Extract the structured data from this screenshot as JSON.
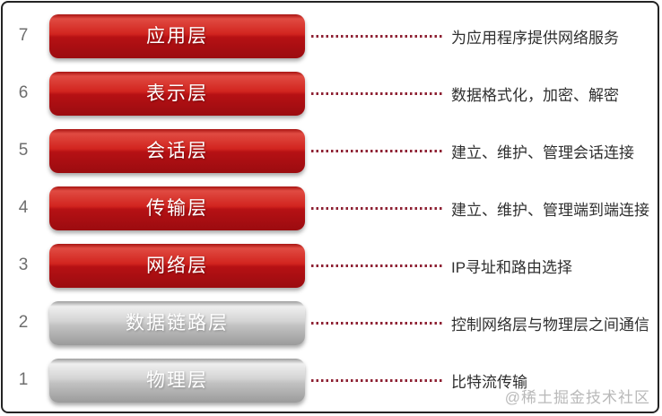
{
  "title": "OSI seven-layer network model diagram",
  "watermark": "@稀土掘金技术社区",
  "colors": {
    "red_bar": "#c8201d",
    "gray_bar": "#c6c6c6",
    "bar_text": "#ffffff",
    "leader_dots": "#8e2133",
    "description_text": "#2f2f2f",
    "layer_number_text": "#6e6e6e",
    "frame_border": "#242424",
    "watermark_text": "#b9b9b9"
  },
  "layers": [
    {
      "num": "7",
      "label": "应用层",
      "desc": "为应用程序提供网络服务",
      "style": "red"
    },
    {
      "num": "6",
      "label": "表示层",
      "desc": "数据格式化，加密、解密",
      "style": "red"
    },
    {
      "num": "5",
      "label": "会话层",
      "desc": "建立、维护、管理会话连接",
      "style": "red"
    },
    {
      "num": "4",
      "label": "传输层",
      "desc": "建立、维护、管理端到端连接",
      "style": "red"
    },
    {
      "num": "3",
      "label": "网络层",
      "desc": "IP寻址和路由选择",
      "style": "red"
    },
    {
      "num": "2",
      "label": "数据链路层",
      "desc": "控制网络层与物理层之间通信",
      "style": "gray"
    },
    {
      "num": "1",
      "label": "物理层",
      "desc": "比特流传输",
      "style": "gray"
    }
  ]
}
